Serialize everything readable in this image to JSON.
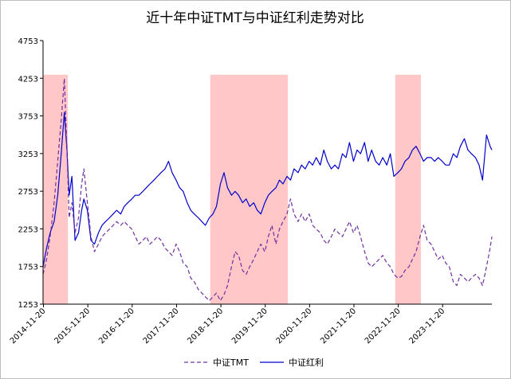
{
  "chart_data": {
    "type": "line",
    "title": "近十年中证TMT与中证红利走势对比",
    "xlabel": "",
    "ylabel": "",
    "ylim": [
      1253,
      4753
    ],
    "yticks": [
      1253,
      1753,
      2253,
      2753,
      3253,
      3753,
      4253,
      4753
    ],
    "ytick_labels": [
      "1253",
      "1753",
      "2253",
      "2753",
      "3253",
      "3753",
      "4253",
      "4753"
    ],
    "xlim": [
      2014.88,
      2025.0
    ],
    "xticks": [
      2014.89,
      2015.89,
      2016.89,
      2017.89,
      2018.89,
      2019.89,
      2020.89,
      2021.89,
      2022.89,
      2023.89
    ],
    "xtick_labels": [
      "2014-11-20",
      "2015-11-20",
      "2016-11-20",
      "2017-11-20",
      "2018-11-20",
      "2019-11-20",
      "2020-11-20",
      "2021-11-20",
      "2022-11-20",
      "2023-11-20"
    ],
    "shaded_ranges": [
      [
        2014.88,
        2015.44
      ],
      [
        2018.65,
        2020.4
      ],
      [
        2022.82,
        2023.4
      ]
    ],
    "shade_color": "#ffc7c7",
    "legend_position": "bottom-center",
    "series": [
      {
        "name": "中证TMT",
        "color": "#7030a0",
        "dash": "dashed",
        "x": [
          2014.88,
          2014.96,
          2015.04,
          2015.13,
          2015.21,
          2015.29,
          2015.36,
          2015.42,
          2015.47,
          2015.53,
          2015.6,
          2015.68,
          2015.75,
          2015.8,
          2015.88,
          2015.96,
          2016.04,
          2016.13,
          2016.21,
          2016.29,
          2016.38,
          2016.46,
          2016.54,
          2016.63,
          2016.71,
          2016.79,
          2016.88,
          2016.96,
          2017.04,
          2017.13,
          2017.21,
          2017.29,
          2017.38,
          2017.46,
          2017.54,
          2017.63,
          2017.71,
          2017.79,
          2017.88,
          2017.96,
          2018.04,
          2018.13,
          2018.21,
          2018.29,
          2018.38,
          2018.46,
          2018.54,
          2018.63,
          2018.71,
          2018.79,
          2018.88,
          2018.96,
          2019.04,
          2019.13,
          2019.21,
          2019.29,
          2019.38,
          2019.46,
          2019.54,
          2019.63,
          2019.71,
          2019.79,
          2019.88,
          2019.96,
          2020.04,
          2020.13,
          2020.21,
          2020.29,
          2020.38,
          2020.46,
          2020.54,
          2020.63,
          2020.71,
          2020.79,
          2020.88,
          2020.96,
          2021.04,
          2021.13,
          2021.21,
          2021.29,
          2021.38,
          2021.46,
          2021.54,
          2021.63,
          2021.71,
          2021.79,
          2021.88,
          2021.96,
          2022.04,
          2022.13,
          2022.21,
          2022.29,
          2022.38,
          2022.46,
          2022.54,
          2022.63,
          2022.71,
          2022.79,
          2022.88,
          2022.96,
          2023.04,
          2023.13,
          2023.21,
          2023.29,
          2023.38,
          2023.46,
          2023.54,
          2023.63,
          2023.71,
          2023.79,
          2023.88,
          2023.96,
          2024.04,
          2024.13,
          2024.21,
          2024.29,
          2024.38,
          2024.46,
          2024.54,
          2024.63,
          2024.71,
          2024.79,
          2024.88,
          2024.96,
          2025.0
        ],
        "values": [
          1650,
          1850,
          2150,
          2600,
          3150,
          3700,
          4250,
          3300,
          2400,
          2600,
          2200,
          2400,
          2850,
          3050,
          2600,
          2150,
          1950,
          2050,
          2150,
          2200,
          2250,
          2300,
          2350,
          2300,
          2350,
          2300,
          2250,
          2150,
          2050,
          2100,
          2150,
          2050,
          2100,
          2150,
          2100,
          2000,
          1950,
          1900,
          2050,
          1950,
          1800,
          1750,
          1600,
          1550,
          1450,
          1400,
          1350,
          1300,
          1350,
          1400,
          1300,
          1380,
          1500,
          1750,
          1950,
          1900,
          1700,
          1650,
          1750,
          1850,
          1950,
          2050,
          1950,
          2150,
          2300,
          2050,
          2250,
          2350,
          2450,
          2650,
          2450,
          2350,
          2450,
          2350,
          2450,
          2300,
          2250,
          2200,
          2100,
          2050,
          2150,
          2250,
          2200,
          2150,
          2250,
          2350,
          2200,
          2300,
          2150,
          1950,
          1800,
          1750,
          1800,
          1850,
          1900,
          1800,
          1750,
          1650,
          1600,
          1620,
          1700,
          1750,
          1850,
          1950,
          2150,
          2300,
          2100,
          2050,
          1950,
          1850,
          1900,
          1800,
          1750,
          1550,
          1500,
          1650,
          1600,
          1550,
          1600,
          1650,
          1600,
          1500,
          1750,
          2000,
          2150
        ]
      },
      {
        "name": "中证红利",
        "color": "#0000cc",
        "dash": "solid",
        "x": [
          2014.88,
          2014.96,
          2015.04,
          2015.13,
          2015.21,
          2015.29,
          2015.36,
          2015.42,
          2015.47,
          2015.53,
          2015.6,
          2015.68,
          2015.75,
          2015.8,
          2015.88,
          2015.96,
          2016.04,
          2016.13,
          2016.21,
          2016.29,
          2016.38,
          2016.46,
          2016.54,
          2016.63,
          2016.71,
          2016.79,
          2016.88,
          2016.96,
          2017.04,
          2017.13,
          2017.21,
          2017.29,
          2017.38,
          2017.46,
          2017.54,
          2017.63,
          2017.71,
          2017.79,
          2017.88,
          2017.96,
          2018.04,
          2018.13,
          2018.21,
          2018.29,
          2018.38,
          2018.46,
          2018.54,
          2018.63,
          2018.71,
          2018.79,
          2018.88,
          2018.96,
          2019.04,
          2019.13,
          2019.21,
          2019.29,
          2019.38,
          2019.46,
          2019.54,
          2019.63,
          2019.71,
          2019.79,
          2019.88,
          2019.96,
          2020.04,
          2020.13,
          2020.21,
          2020.29,
          2020.38,
          2020.46,
          2020.54,
          2020.63,
          2020.71,
          2020.79,
          2020.88,
          2020.96,
          2021.04,
          2021.13,
          2021.21,
          2021.29,
          2021.38,
          2021.46,
          2021.54,
          2021.63,
          2021.71,
          2021.79,
          2021.88,
          2021.96,
          2022.04,
          2022.13,
          2022.21,
          2022.29,
          2022.38,
          2022.46,
          2022.54,
          2022.63,
          2022.71,
          2022.79,
          2022.88,
          2022.96,
          2023.04,
          2023.13,
          2023.21,
          2023.29,
          2023.38,
          2023.46,
          2023.54,
          2023.63,
          2023.71,
          2023.79,
          2023.88,
          2023.96,
          2024.04,
          2024.13,
          2024.21,
          2024.29,
          2024.38,
          2024.46,
          2024.54,
          2024.63,
          2024.71,
          2024.79,
          2024.88,
          2024.96,
          2025.0
        ],
        "values": [
          1750,
          2000,
          2200,
          2350,
          2700,
          3250,
          3800,
          3300,
          2700,
          2950,
          2100,
          2200,
          2500,
          2650,
          2500,
          2100,
          2050,
          2200,
          2300,
          2350,
          2400,
          2450,
          2500,
          2450,
          2550,
          2600,
          2650,
          2700,
          2700,
          2750,
          2800,
          2850,
          2900,
          2950,
          3000,
          3050,
          3150,
          3000,
          2900,
          2800,
          2750,
          2600,
          2500,
          2450,
          2400,
          2350,
          2300,
          2400,
          2450,
          2550,
          2850,
          3000,
          2800,
          2700,
          2750,
          2700,
          2600,
          2650,
          2550,
          2600,
          2500,
          2450,
          2600,
          2700,
          2750,
          2800,
          2900,
          2850,
          2950,
          2900,
          3050,
          3000,
          3100,
          3050,
          3150,
          3100,
          3200,
          3100,
          3300,
          3150,
          3050,
          3100,
          3050,
          3250,
          3200,
          3400,
          3150,
          3300,
          3250,
          3400,
          3150,
          3300,
          3150,
          3100,
          3200,
          3100,
          3250,
          2950,
          3000,
          3050,
          3150,
          3200,
          3300,
          3350,
          3250,
          3150,
          3200,
          3200,
          3150,
          3200,
          3150,
          3100,
          3100,
          3250,
          3200,
          3350,
          3450,
          3300,
          3250,
          3200,
          3100,
          2900,
          3500,
          3350,
          3300
        ]
      }
    ]
  }
}
